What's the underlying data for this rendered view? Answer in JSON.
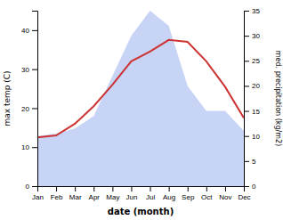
{
  "chart_data": {
    "type": "line",
    "x_label": "date (month)",
    "y_label": "max temp (C)",
    "y2_label": "med. precipitation (kg/m2)",
    "categories": [
      "Jan",
      "Feb",
      "Mar",
      "Apr",
      "May",
      "Jun",
      "Jul",
      "Aug",
      "Sep",
      "Oct",
      "Nov",
      "Dec"
    ],
    "series": [
      {
        "type": "area",
        "axis": "y2",
        "color": "#c8d4f5",
        "values": [
          10.0,
          10.5,
          11.5,
          14.0,
          22.0,
          30.0,
          35.0,
          32.0,
          20.0,
          15.0,
          15.0,
          11.0
        ]
      },
      {
        "type": "line",
        "axis": "y",
        "color": "#cc3333",
        "values": [
          12.5,
          13.0,
          16.0,
          20.5,
          26.0,
          32.0,
          34.5,
          37.5,
          37.0,
          32.0,
          25.5,
          17.5
        ]
      }
    ],
    "ylim": [
      0,
      45
    ],
    "yticks": [
      0,
      10,
      20,
      30,
      40
    ],
    "y2lim": [
      0,
      35
    ],
    "y2ticks": [
      0,
      5,
      10,
      15,
      20,
      25,
      30,
      35
    ],
    "grid": false
  }
}
